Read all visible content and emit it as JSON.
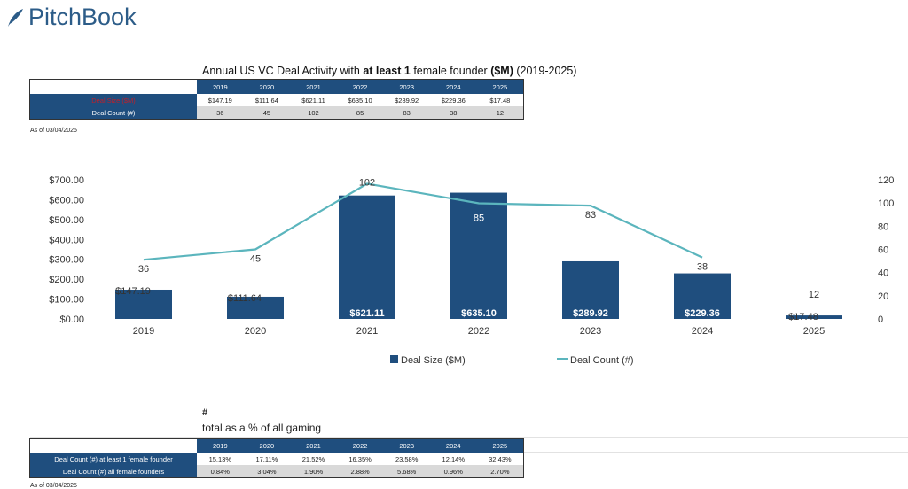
{
  "logo": "PitchBook",
  "top_table": {
    "title_pre": "Annual US VC Deal Activity with ",
    "title_bold1": "at least 1",
    "title_mid": " female founder ",
    "title_bold2": "($M)",
    "title_post": " (2019-2025)",
    "years": [
      "2019",
      "2020",
      "2021",
      "2022",
      "2023",
      "2024",
      "2025"
    ],
    "rows": [
      {
        "label": "Deal Size ($M)",
        "values": [
          "$147.19",
          "$111.64",
          "$621.11",
          "$635.10",
          "$289.92",
          "$229.36",
          "$17.48"
        ]
      },
      {
        "label": "Deal Count (#)",
        "values": [
          "36",
          "45",
          "102",
          "85",
          "83",
          "38",
          "12"
        ]
      }
    ],
    "as_of": "As of 03/04/2025"
  },
  "chart_data": {
    "type": "bar+line",
    "categories": [
      "2019",
      "2020",
      "2021",
      "2022",
      "2023",
      "2024",
      "2025"
    ],
    "series": [
      {
        "name": "Deal Size ($M)",
        "type": "bar",
        "axis": "left",
        "values": [
          147.19,
          111.64,
          621.11,
          635.1,
          289.92,
          229.36,
          17.48
        ],
        "labels": [
          "$147.19",
          "$111.64",
          "$621.11",
          "$635.10",
          "$289.92",
          "$229.36",
          "$17.48"
        ],
        "color": "#1f4e7e"
      },
      {
        "name": "Deal Count (#)",
        "type": "line",
        "axis": "right",
        "values": [
          36,
          45,
          102,
          85,
          83,
          38,
          12
        ],
        "color": "#5bb5bd"
      }
    ],
    "left_ticks": [
      "$0.00",
      "$100.00",
      "$200.00",
      "$300.00",
      "$400.00",
      "$500.00",
      "$600.00",
      "$700.00"
    ],
    "right_ticks": [
      "0",
      "20",
      "40",
      "60",
      "80",
      "100",
      "120"
    ],
    "ylim_left": [
      0,
      700
    ],
    "ylim_right": [
      0,
      120
    ],
    "grid": false,
    "legend": "bottom"
  },
  "bottom_table": {
    "hash": "#",
    "subtitle": "total as a % of all gaming",
    "years": [
      "2019",
      "2020",
      "2021",
      "2022",
      "2023",
      "2024",
      "2025"
    ],
    "rows": [
      {
        "label": "Deal Count (#) at least 1 female founder",
        "values": [
          "15.13%",
          "17.11%",
          "21.52%",
          "16.35%",
          "23.58%",
          "12.14%",
          "32.43%"
        ]
      },
      {
        "label": "Deal Count (#) all female founders",
        "values": [
          "0.84%",
          "3.04%",
          "1.90%",
          "2.88%",
          "5.68%",
          "0.96%",
          "2.70%"
        ]
      }
    ],
    "as_of": "As of 03/04/2025"
  }
}
